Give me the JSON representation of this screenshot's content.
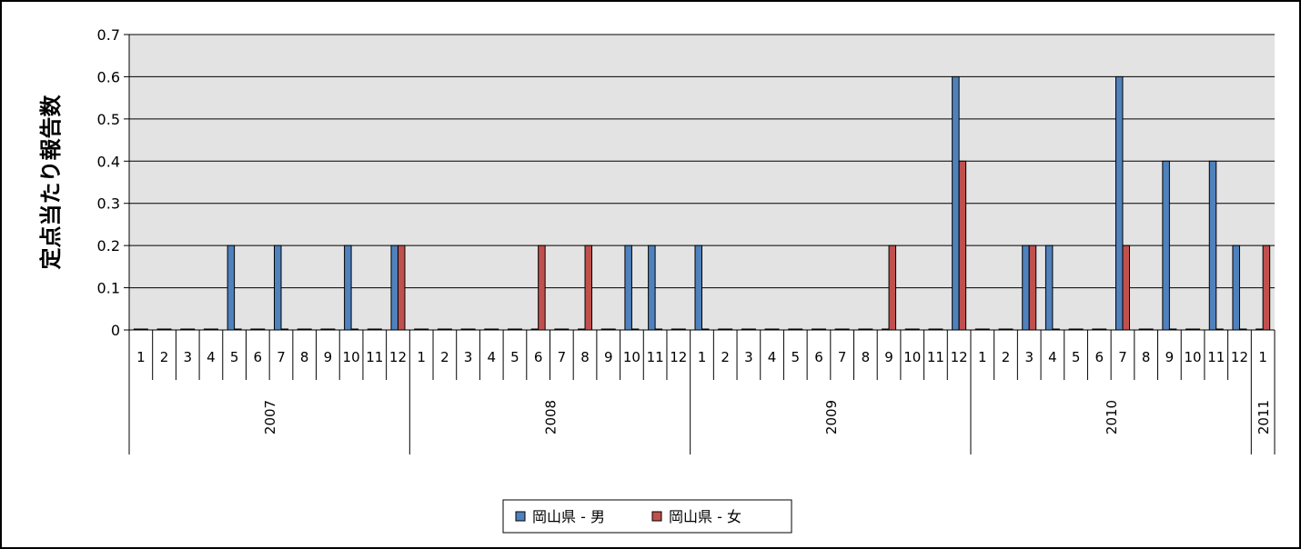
{
  "chart_data": {
    "type": "bar",
    "title": "",
    "xlabel": "",
    "ylabel": "定点当たり報告数",
    "ylim": [
      0,
      0.7
    ],
    "yticks": [
      "0",
      "0.1",
      "0.2",
      "0.3",
      "0.4",
      "0.5",
      "0.6",
      "0.7"
    ],
    "grid": true,
    "legend_position": "bottom",
    "categories": [
      "1",
      "2",
      "3",
      "4",
      "5",
      "6",
      "7",
      "8",
      "9",
      "10",
      "11",
      "12",
      "1",
      "2",
      "3",
      "4",
      "5",
      "6",
      "7",
      "8",
      "9",
      "10",
      "11",
      "12",
      "1",
      "2",
      "3",
      "4",
      "5",
      "6",
      "7",
      "8",
      "9",
      "10",
      "11",
      "12",
      "1",
      "2",
      "3",
      "4",
      "5",
      "6",
      "7",
      "8",
      "9",
      "10",
      "11",
      "12",
      "1"
    ],
    "groups": [
      {
        "label": "2007",
        "count": 12
      },
      {
        "label": "2008",
        "count": 12
      },
      {
        "label": "2009",
        "count": 12
      },
      {
        "label": "2010",
        "count": 12
      },
      {
        "label": "2011",
        "count": 1
      }
    ],
    "series": [
      {
        "name": "岡山県 - 男",
        "color": "#4f81bd",
        "values": [
          0,
          0,
          0,
          0,
          0.2,
          0,
          0.2,
          0,
          0,
          0.2,
          0,
          0.2,
          0,
          0,
          0,
          0,
          0,
          0,
          0,
          0,
          0,
          0.2,
          0.2,
          0,
          0.2,
          0,
          0,
          0,
          0,
          0,
          0,
          0,
          0,
          0,
          0,
          0.6,
          0,
          0,
          0.2,
          0.2,
          0,
          0,
          0.6,
          0,
          0.4,
          0,
          0.4,
          0.2,
          0
        ]
      },
      {
        "name": "岡山県 - 女",
        "color": "#c0504d",
        "values": [
          0,
          0,
          0,
          0,
          0,
          0,
          0,
          0,
          0,
          0,
          0,
          0.2,
          0,
          0,
          0,
          0,
          0,
          0.2,
          0,
          0.2,
          0,
          0,
          0,
          0,
          0,
          0,
          0,
          0,
          0,
          0,
          0,
          0,
          0.2,
          0,
          0,
          0.4,
          0,
          0,
          0.2,
          0,
          0,
          0,
          0.2,
          0,
          0,
          0,
          0,
          0,
          0.2
        ]
      }
    ]
  }
}
